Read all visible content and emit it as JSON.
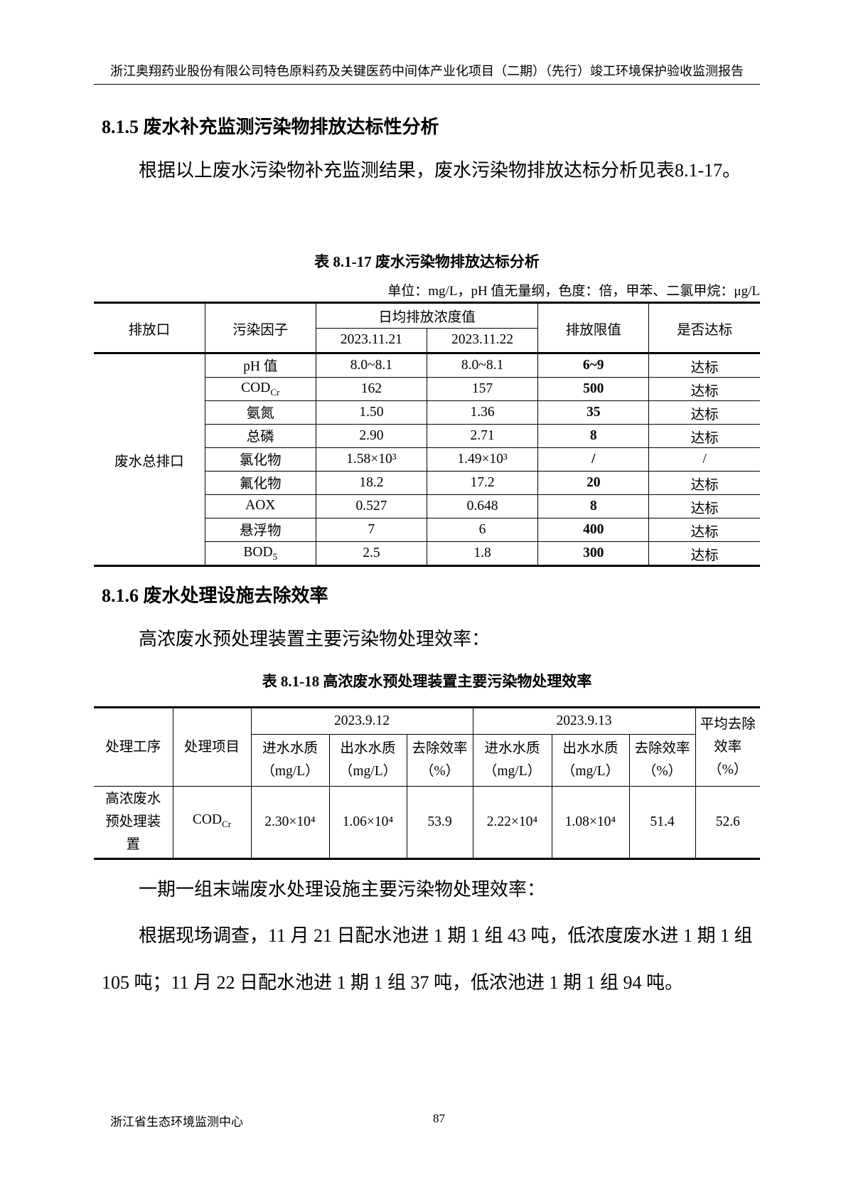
{
  "header": "浙江奥翔药业股份有限公司特色原料药及关键医药中间体产业化项目（二期）（先行）竣工环境保护验收监测报告",
  "s815": {
    "heading": "8.1.5  废水补充监测污染物排放达标性分析",
    "para": "根据以上废水污染物补充监测结果，废水污染物排放达标分析见表8.1-17。",
    "caption": "表 8.1-17  废水污染物排放达标分析",
    "unit": "单位：mg/L，pH 值无量纲，色度：倍，甲苯、二氯甲烷：μg/L",
    "headers": {
      "outlet": "排放口",
      "factor": "污染因子",
      "daily": "日均排放浓度值",
      "d1": "2023.11.21",
      "d2": "2023.11.22",
      "limit": "排放限值",
      "ok": "是否达标"
    },
    "outlet": "废水总排口",
    "rows": [
      {
        "f": "pH 值",
        "fs": "",
        "a": "8.0~8.1",
        "b": "8.0~8.1",
        "l": "6~9",
        "r": "达标"
      },
      {
        "f": "COD",
        "fs": "Cr",
        "a": "162",
        "b": "157",
        "l": "500",
        "r": "达标"
      },
      {
        "f": "氨氮",
        "fs": "",
        "a": "1.50",
        "b": "1.36",
        "l": "35",
        "r": "达标"
      },
      {
        "f": "总磷",
        "fs": "",
        "a": "2.90",
        "b": "2.71",
        "l": "8",
        "r": "达标"
      },
      {
        "f": "氯化物",
        "fs": "",
        "a": "1.58×10³",
        "b": "1.49×10³",
        "l": "/",
        "r": "/"
      },
      {
        "f": "氟化物",
        "fs": "",
        "a": "18.2",
        "b": "17.2",
        "l": "20",
        "r": "达标"
      },
      {
        "f": "AOX",
        "fs": "",
        "a": "0.527",
        "b": "0.648",
        "l": "8",
        "r": "达标"
      },
      {
        "f": "悬浮物",
        "fs": "",
        "a": "7",
        "b": "6",
        "l": "400",
        "r": "达标"
      },
      {
        "f": "BOD",
        "fs": "5",
        "a": "2.5",
        "b": "1.8",
        "l": "300",
        "r": "达标"
      }
    ]
  },
  "s816": {
    "heading": "8.1.6  废水处理设施去除效率",
    "para1": "高浓废水预处理装置主要污染物处理效率：",
    "caption": "表 8.1-18  高浓废水预处理装置主要污染物处理效率",
    "headers": {
      "proc": "处理工序",
      "item": "处理项目",
      "d1": "2023.9.12",
      "d2": "2023.9.13",
      "in": "进水水质（mg/L）",
      "out": "出水水质（mg/L）",
      "eff": "去除效率（%）",
      "avg": "平均去除效率（%）"
    },
    "row": {
      "proc": "高浓废水预处理装置",
      "item": "COD",
      "item_sub": "Cr",
      "in1": "2.30×10⁴",
      "out1": "1.06×10⁴",
      "eff1": "53.9",
      "in2": "2.22×10⁴",
      "out2": "1.08×10⁴",
      "eff2": "51.4",
      "avg": "52.6"
    },
    "para2": "一期一组末端废水处理设施主要污染物处理效率：",
    "para3": "根据现场调查，11 月 21 日配水池进 1 期 1 组 43 吨，低浓度废水进 1 期 1 组 105 吨；11 月 22 日配水池进 1 期 1 组 37 吨，低浓池进 1 期 1 组 94 吨。"
  },
  "footer": {
    "org": "浙江省生态环境监测中心",
    "page": "87"
  }
}
